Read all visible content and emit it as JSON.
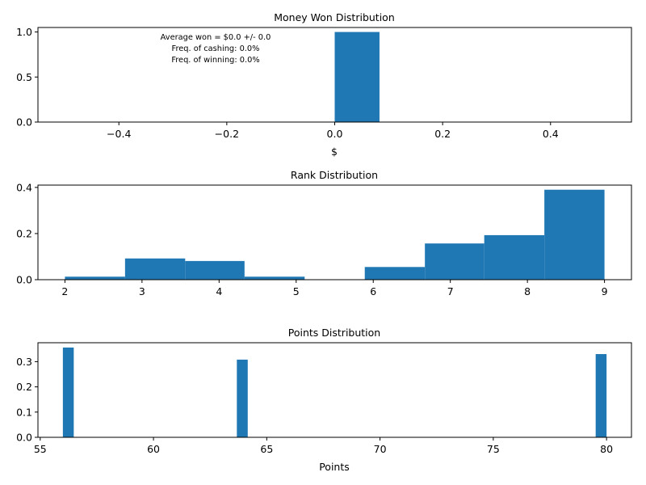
{
  "colors": {
    "bar": "#1f77b4",
    "axis": "#000000",
    "background": "#ffffff"
  },
  "chart_data": [
    {
      "type": "bar",
      "title": "Money Won Distribution",
      "xlabel": "$",
      "ylabel": "",
      "xlim": [
        -0.55,
        0.55
      ],
      "ylim": [
        0,
        1.05
      ],
      "xticks": [
        "-0.4",
        "-0.2",
        "0.0",
        "0.2",
        "0.4"
      ],
      "xtick_values": [
        -0.4,
        -0.2,
        0.0,
        0.2,
        0.4
      ],
      "yticks": [
        "0.0",
        "0.5",
        "1.0"
      ],
      "ytick_values": [
        0.0,
        0.5,
        1.0
      ],
      "bins": [
        {
          "x0": 0.0,
          "x1": 0.083,
          "value": 1.0
        }
      ],
      "annotations": [
        "Average won = $0.0 +/- 0.0",
        "Freq. of cashing: 0.0%",
        "Freq. of winning: 0.0%"
      ],
      "grid": false
    },
    {
      "type": "bar",
      "title": "Rank Distribution",
      "xlabel": "",
      "ylabel": "",
      "xlim": [
        1.65,
        9.35
      ],
      "ylim": [
        0,
        0.41
      ],
      "xticks": [
        "2",
        "3",
        "4",
        "5",
        "6",
        "7",
        "8",
        "9"
      ],
      "xtick_values": [
        2,
        3,
        4,
        5,
        6,
        7,
        8,
        9
      ],
      "yticks": [
        "0.0",
        "0.2",
        "0.4"
      ],
      "ytick_values": [
        0.0,
        0.2,
        0.4
      ],
      "bins": [
        {
          "x0": 2.0,
          "x1": 2.78,
          "value": 0.013
        },
        {
          "x0": 2.78,
          "x1": 3.56,
          "value": 0.092
        },
        {
          "x0": 3.56,
          "x1": 4.33,
          "value": 0.081
        },
        {
          "x0": 4.33,
          "x1": 5.11,
          "value": 0.013
        },
        {
          "x0": 5.11,
          "x1": 5.89,
          "value": 0.0
        },
        {
          "x0": 5.89,
          "x1": 6.67,
          "value": 0.055
        },
        {
          "x0": 6.67,
          "x1": 7.44,
          "value": 0.157
        },
        {
          "x0": 7.44,
          "x1": 8.22,
          "value": 0.193
        },
        {
          "x0": 8.22,
          "x1": 9.0,
          "value": 0.39
        }
      ],
      "grid": false
    },
    {
      "type": "bar",
      "title": "Points Distribution",
      "xlabel": "Points",
      "ylabel": "",
      "xlim": [
        54.9,
        81.1
      ],
      "ylim": [
        0,
        0.375
      ],
      "xticks": [
        "55",
        "60",
        "65",
        "70",
        "75",
        "80"
      ],
      "xtick_values": [
        55,
        60,
        65,
        70,
        75,
        80
      ],
      "yticks": [
        "0.0",
        "0.1",
        "0.2",
        "0.3"
      ],
      "ytick_values": [
        0.0,
        0.1,
        0.2,
        0.3
      ],
      "bins": [
        {
          "x0": 56.0,
          "x1": 56.48,
          "value": 0.356
        },
        {
          "x0": 63.68,
          "x1": 64.16,
          "value": 0.308
        },
        {
          "x0": 79.52,
          "x1": 80.0,
          "value": 0.33
        }
      ],
      "grid": false
    }
  ]
}
